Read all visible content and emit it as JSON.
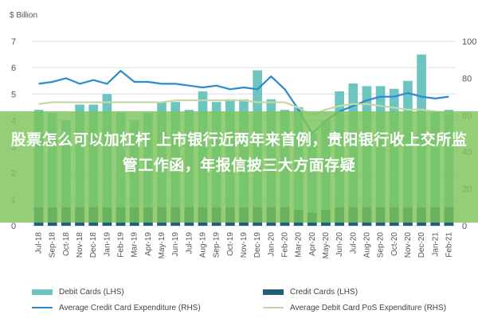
{
  "chart_data": {
    "type": "bar",
    "left_unit": "$ Billion",
    "categories": [
      "Jul-18",
      "Sep-18",
      "Oct-18",
      "Nov-18",
      "Dec-18",
      "Jan-19",
      "Feb-19",
      "Mar-19",
      "Apr-19",
      "May-19",
      "Jun-19",
      "Jul-19",
      "Aug-19",
      "Sep-19",
      "Oct-19",
      "Nov-19",
      "Dec-19",
      "Jan-20",
      "Feb-20",
      "Mar-20",
      "Apr-20",
      "May-20",
      "Jun-20",
      "Jul-20",
      "Aug-20",
      "Sep-20",
      "Oct-20",
      "Nov-20",
      "Dec-20",
      "Jan-21",
      "Feb-21"
    ],
    "y_left": {
      "ticks": [
        0,
        1,
        2,
        3,
        4,
        5,
        6,
        7
      ],
      "min": 0,
      "max": 7
    },
    "y_right": {
      "ticks": [
        0,
        20,
        40,
        60,
        80,
        100
      ],
      "min": 0,
      "max": 100
    },
    "series": [
      {
        "name": "Debit Cards (LHS)",
        "axis": "left",
        "kind": "bar",
        "color": "#6cc5c1",
        "values": [
          4.4,
          4.3,
          4.0,
          4.6,
          4.6,
          5.0,
          4.3,
          4.0,
          4.3,
          4.7,
          4.7,
          4.4,
          5.1,
          4.7,
          4.8,
          4.8,
          5.9,
          4.8,
          4.4,
          4.5,
          3.5,
          4.0,
          5.1,
          5.4,
          5.3,
          5.3,
          5.2,
          5.5,
          6.5,
          4.3,
          4.4
        ]
      },
      {
        "name": "Credit Cards (LHS)",
        "axis": "left",
        "kind": "bar",
        "color": "#1f5f7a",
        "values": [
          0.7,
          0.7,
          0.7,
          0.7,
          0.7,
          0.7,
          0.7,
          0.7,
          0.7,
          0.7,
          0.7,
          0.7,
          0.7,
          0.7,
          0.7,
          0.7,
          0.7,
          0.7,
          0.7,
          0.6,
          0.5,
          0.6,
          0.7,
          0.7,
          0.7,
          0.7,
          0.7,
          0.7,
          0.7,
          0.7,
          0.7
        ]
      },
      {
        "name": "Average Credit Card Expenditure (RHS)",
        "axis": "right",
        "kind": "line",
        "color": "#2a8bcf",
        "values": [
          77,
          78,
          80,
          77,
          79,
          77,
          84,
          78,
          78,
          77,
          77,
          76,
          75,
          76,
          74,
          75,
          74,
          81,
          74,
          63,
          50,
          57,
          62,
          65,
          68,
          70,
          70,
          72,
          70,
          69,
          70
        ]
      },
      {
        "name": "Average Debit Card PoS Expenditure (RHS)",
        "axis": "right",
        "kind": "line",
        "color": "#c8d7a0",
        "values": [
          66,
          67,
          67,
          67,
          67,
          67,
          67,
          67,
          67,
          67,
          68,
          68,
          68,
          68,
          68,
          68,
          67,
          67,
          67,
          64,
          60,
          63,
          65,
          66,
          66,
          65,
          64,
          63,
          63,
          62,
          61
        ]
      }
    ],
    "grid": true,
    "legend_position": "bottom"
  },
  "overlay": {
    "text": "股票怎么可以加杠杆 上市银行近两年来首例，贵阳银行收上交所监管工作函，年报信披三大方面存疑"
  }
}
